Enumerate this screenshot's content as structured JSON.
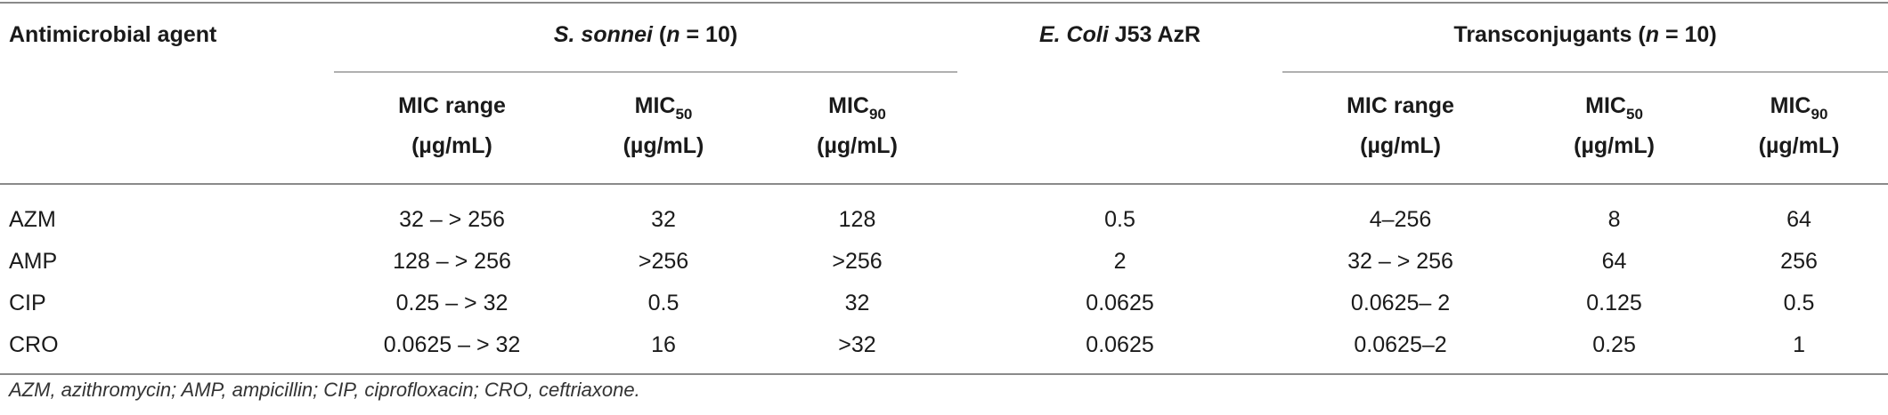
{
  "table": {
    "header_top": {
      "agent": "Antimicrobial agent",
      "group1": {
        "italic": "S. sonnei",
        "mid": " (",
        "n": "n",
        "rest": " = 10)"
      },
      "group2": {
        "italic": "E. Coli",
        "rest": " J53 AzR"
      },
      "group3": {
        "pre": "Transconjugants (",
        "n": "n",
        "rest": " = 10)"
      }
    },
    "subheaders": [
      {
        "line1": "MIC range",
        "sub": "",
        "line2": "(µg/mL)"
      },
      {
        "line1": "MIC",
        "sub": "50",
        "line2": "(µg/mL)"
      },
      {
        "line1": "MIC",
        "sub": "90",
        "line2": "(µg/mL)"
      },
      {
        "line1": "",
        "sub": "",
        "line2": ""
      },
      {
        "line1": "MIC range",
        "sub": "",
        "line2": "(µg/mL)"
      },
      {
        "line1": "MIC",
        "sub": "50",
        "line2": "(µg/mL)"
      },
      {
        "line1": "MIC",
        "sub": "90",
        "line2": "(µg/mL)"
      }
    ],
    "rows": [
      {
        "agent": "AZM",
        "cells": [
          "32 – > 256",
          "32",
          "128",
          "0.5",
          "4–256",
          "8",
          "64"
        ]
      },
      {
        "agent": "AMP",
        "cells": [
          "128 – > 256",
          ">256",
          ">256",
          "2",
          "32 – > 256",
          "64",
          "256"
        ]
      },
      {
        "agent": "CIP",
        "cells": [
          "0.25 – > 32",
          "0.5",
          "32",
          "0.0625",
          "0.0625– 2",
          "0.125",
          "0.5"
        ]
      },
      {
        "agent": "CRO",
        "cells": [
          "0.0625 – > 32",
          "16",
          ">32",
          "0.0625",
          "0.0625–2",
          "0.25",
          "1"
        ]
      }
    ]
  },
  "footnote": "AZM, azithromycin; AMP, ampicillin; CIP, ciprofloxacin; CRO, ceftriaxone."
}
